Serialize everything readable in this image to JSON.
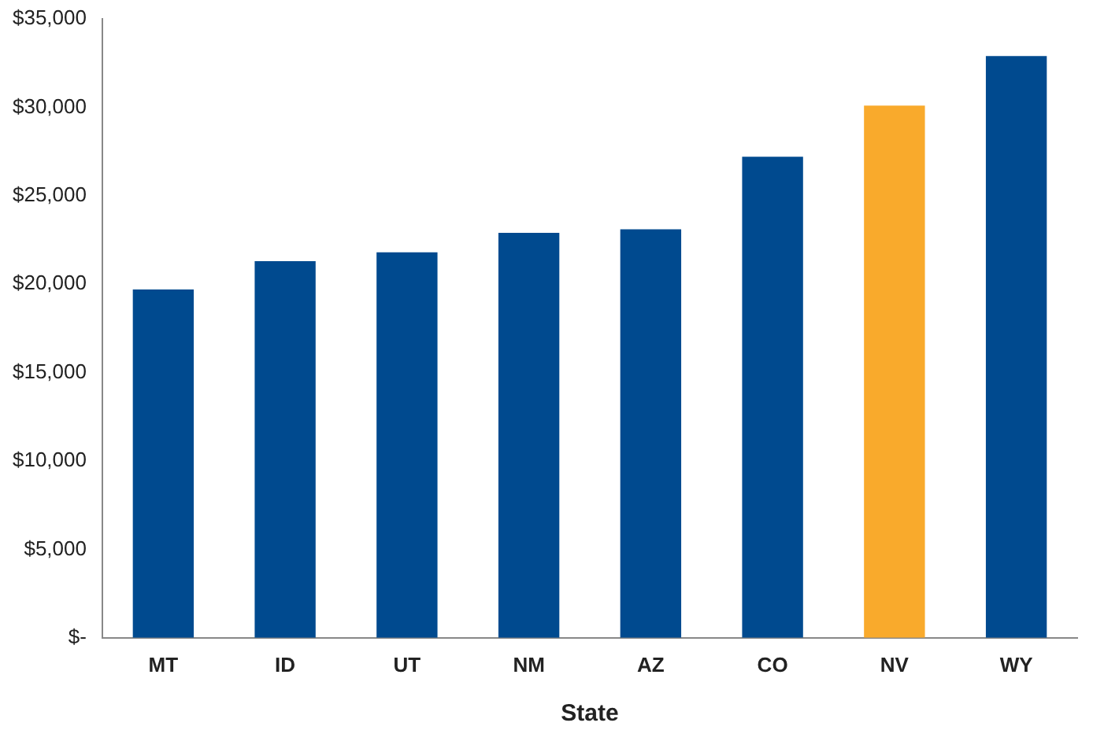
{
  "chart_data": {
    "type": "bar",
    "xlabel": "State",
    "categories": [
      "MT",
      "ID",
      "UT",
      "NM",
      "AZ",
      "CO",
      "NV",
      "WY"
    ],
    "values": [
      19700,
      21300,
      21800,
      22900,
      23100,
      27200,
      30100,
      32900
    ],
    "colors": [
      "#004a8f",
      "#004a8f",
      "#004a8f",
      "#004a8f",
      "#004a8f",
      "#004a8f",
      "#f9aa2c",
      "#004a8f"
    ],
    "ylim": [
      0,
      35000
    ],
    "yticks": [
      {
        "value": 0,
        "label": "$-"
      },
      {
        "value": 5000,
        "label": "$5,000"
      },
      {
        "value": 10000,
        "label": "$10,000"
      },
      {
        "value": 15000,
        "label": "$15,000"
      },
      {
        "value": 20000,
        "label": "$20,000"
      },
      {
        "value": 25000,
        "label": "$25,000"
      },
      {
        "value": 30000,
        "label": "$30,000"
      },
      {
        "value": 35000,
        "label": "$35,000"
      }
    ],
    "grid": false,
    "legend": false
  }
}
